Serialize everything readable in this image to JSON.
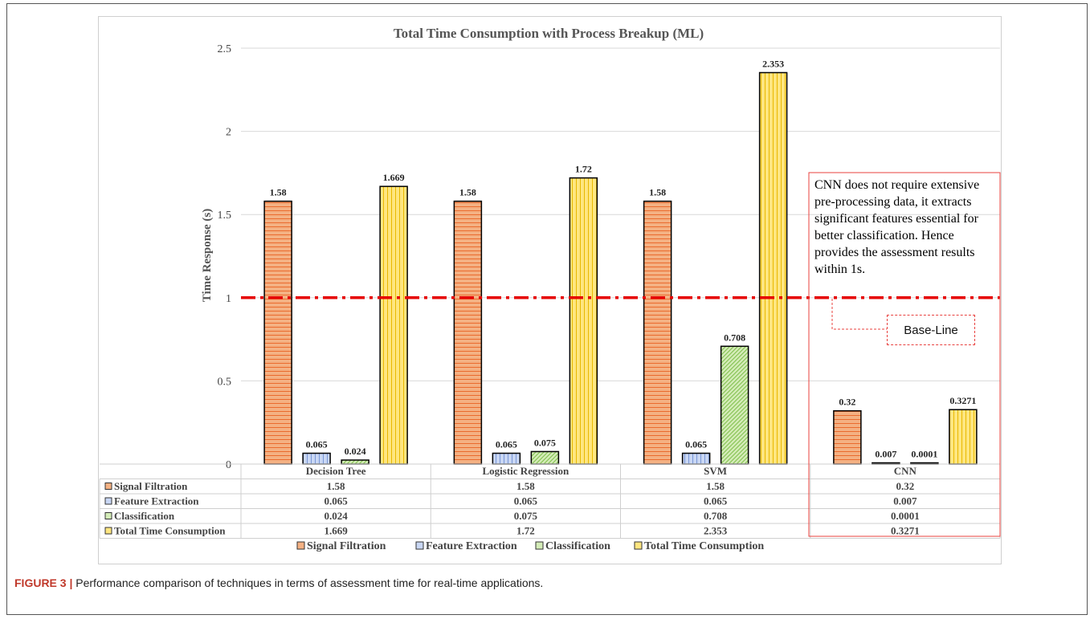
{
  "caption": {
    "label": "FIGURE 3 |",
    "text": " Performance comparison of techniques in terms of assessment time for real-time applications."
  },
  "note_text": "CNN does not require extensive pre-processing data, it extracts significant features essential for better classification. Hence provides the assessment results within 1s.",
  "baseline_label": "Base-Line",
  "chart_data": {
    "type": "bar",
    "title": "Total Time Consumption with Process Breakup (ML)",
    "ylabel": "Time Response (s)",
    "xlabel": "",
    "ylim": [
      0,
      2.5
    ],
    "yticks": [
      0,
      0.5,
      1,
      1.5,
      2,
      2.5
    ],
    "ytick_labels": [
      "0",
      "0.5",
      "1",
      "1.5",
      "2",
      "2.5"
    ],
    "grid": true,
    "legend_position": "bottom",
    "categories": [
      "Decision Tree",
      "Logistic Regression",
      "SVM",
      "CNN"
    ],
    "series": [
      {
        "name": "Signal Filtration",
        "values": [
          1.58,
          1.58,
          1.58,
          0.32
        ],
        "labels": [
          "1.58",
          "1.58",
          "1.58",
          "0.32"
        ],
        "table": [
          "1.58",
          "1.58",
          "1.58",
          "0.32"
        ],
        "color": "#f4b183",
        "stripe": "#ea6b2e"
      },
      {
        "name": "Feature Extraction",
        "values": [
          0.065,
          0.065,
          0.065,
          0.007
        ],
        "labels": [
          "0.065",
          "0.065",
          "0.065",
          "0.007"
        ],
        "table": [
          "0.065",
          "0.065",
          "0.065",
          "0.007"
        ],
        "color": "#c9d7f4",
        "stripe": "#7a97d6"
      },
      {
        "name": "Classification",
        "values": [
          0.024,
          0.075,
          0.708,
          0.0001
        ],
        "labels": [
          "0.024",
          "0.075",
          "0.708",
          "0.0001"
        ],
        "table": [
          "0.024",
          "0.075",
          "0.708",
          "0.0001"
        ],
        "color": "#d4ecb8",
        "stripe": "#7fbf4a"
      },
      {
        "name": "Total Time Consumption",
        "values": [
          1.669,
          1.72,
          2.353,
          0.3271
        ],
        "labels": [
          "1.669",
          "1.72",
          "2.353",
          "0.3271"
        ],
        "table": [
          "1.669",
          "1.72",
          "2.353",
          "0.3271"
        ],
        "color": "#ffe680",
        "stripe": "#e8b800"
      }
    ],
    "reference_line": {
      "value": 1,
      "color": "#e60000",
      "style": "dash-dot"
    },
    "highlight_color": "#e8403e"
  }
}
